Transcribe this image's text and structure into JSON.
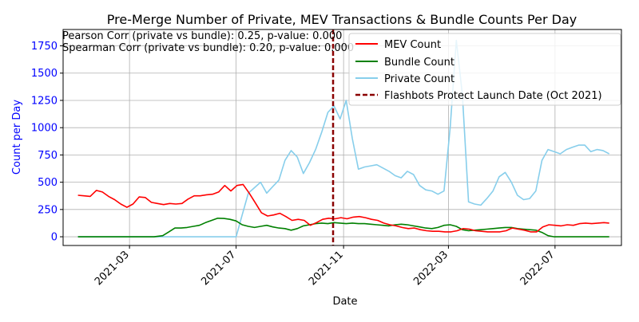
{
  "chart_data": {
    "type": "line",
    "title": "Pre-Merge Number of Private, MEV Transactions & Bundle Counts Per Day",
    "xlabel": "Date",
    "ylabel": "Count per Day",
    "xlim": [
      "2020-12-15",
      "2022-09-15"
    ],
    "ylim": [
      -80,
      1900
    ],
    "yticks": [
      0,
      250,
      500,
      750,
      1000,
      1250,
      1500,
      1750
    ],
    "xticks": [
      {
        "date": "2021-03-01",
        "label": "2021-03"
      },
      {
        "date": "2021-07-01",
        "label": "2021-07"
      },
      {
        "date": "2021-11-01",
        "label": "2021-11"
      },
      {
        "date": "2022-03-01",
        "label": "2022-03"
      },
      {
        "date": "2022-07-01",
        "label": "2022-07"
      }
    ],
    "grid": true,
    "legend_position": "top-right",
    "annotations": [
      "Pearson Corr (private vs bundle): 0.25, p-value: 0.000",
      "Spearman Corr (private vs bundle): 0.20, p-value: 0.000"
    ],
    "vline": {
      "date": "2021-10-20",
      "name": "Flashbots Protect Launch Date (Oct 2021)",
      "color": "#8b0000"
    },
    "series": [
      {
        "name": "MEV Count",
        "color": "#ff0000",
        "points": [
          [
            "2021-01-01",
            380
          ],
          [
            "2021-01-08",
            375
          ],
          [
            "2021-01-15",
            370
          ],
          [
            "2021-01-22",
            425
          ],
          [
            "2021-01-29",
            410
          ],
          [
            "2021-02-05",
            370
          ],
          [
            "2021-02-12",
            340
          ],
          [
            "2021-02-19",
            300
          ],
          [
            "2021-02-26",
            270
          ],
          [
            "2021-03-05",
            300
          ],
          [
            "2021-03-12",
            365
          ],
          [
            "2021-03-19",
            360
          ],
          [
            "2021-03-26",
            315
          ],
          [
            "2021-04-02",
            305
          ],
          [
            "2021-04-09",
            295
          ],
          [
            "2021-04-16",
            305
          ],
          [
            "2021-04-23",
            300
          ],
          [
            "2021-04-30",
            305
          ],
          [
            "2021-05-07",
            345
          ],
          [
            "2021-05-14",
            375
          ],
          [
            "2021-05-21",
            375
          ],
          [
            "2021-05-28",
            385
          ],
          [
            "2021-06-04",
            390
          ],
          [
            "2021-06-11",
            410
          ],
          [
            "2021-06-18",
            470
          ],
          [
            "2021-06-25",
            420
          ],
          [
            "2021-07-02",
            470
          ],
          [
            "2021-07-09",
            480
          ],
          [
            "2021-07-16",
            400
          ],
          [
            "2021-07-23",
            310
          ],
          [
            "2021-07-30",
            220
          ],
          [
            "2021-08-06",
            190
          ],
          [
            "2021-08-13",
            200
          ],
          [
            "2021-08-20",
            215
          ],
          [
            "2021-08-27",
            185
          ],
          [
            "2021-09-03",
            150
          ],
          [
            "2021-09-10",
            160
          ],
          [
            "2021-09-17",
            150
          ],
          [
            "2021-09-24",
            105
          ],
          [
            "2021-10-01",
            130
          ],
          [
            "2021-10-08",
            160
          ],
          [
            "2021-10-15",
            170
          ],
          [
            "2021-10-22",
            165
          ],
          [
            "2021-10-29",
            175
          ],
          [
            "2021-11-05",
            165
          ],
          [
            "2021-11-12",
            180
          ],
          [
            "2021-11-19",
            185
          ],
          [
            "2021-11-26",
            175
          ],
          [
            "2021-12-03",
            160
          ],
          [
            "2021-12-10",
            150
          ],
          [
            "2021-12-17",
            125
          ],
          [
            "2021-12-24",
            110
          ],
          [
            "2021-12-31",
            100
          ],
          [
            "2022-01-07",
            85
          ],
          [
            "2022-01-14",
            75
          ],
          [
            "2022-01-21",
            80
          ],
          [
            "2022-01-28",
            65
          ],
          [
            "2022-02-04",
            55
          ],
          [
            "2022-02-11",
            50
          ],
          [
            "2022-02-18",
            50
          ],
          [
            "2022-02-25",
            45
          ],
          [
            "2022-03-04",
            45
          ],
          [
            "2022-03-11",
            55
          ],
          [
            "2022-03-18",
            75
          ],
          [
            "2022-03-25",
            70
          ],
          [
            "2022-04-01",
            55
          ],
          [
            "2022-04-08",
            50
          ],
          [
            "2022-04-15",
            45
          ],
          [
            "2022-04-22",
            45
          ],
          [
            "2022-04-29",
            45
          ],
          [
            "2022-05-06",
            55
          ],
          [
            "2022-05-13",
            80
          ],
          [
            "2022-05-20",
            70
          ],
          [
            "2022-05-27",
            60
          ],
          [
            "2022-06-03",
            45
          ],
          [
            "2022-06-10",
            45
          ],
          [
            "2022-06-17",
            90
          ],
          [
            "2022-06-24",
            110
          ],
          [
            "2022-07-01",
            105
          ],
          [
            "2022-07-08",
            100
          ],
          [
            "2022-07-15",
            110
          ],
          [
            "2022-07-22",
            105
          ],
          [
            "2022-07-29",
            120
          ],
          [
            "2022-08-05",
            125
          ],
          [
            "2022-08-12",
            120
          ],
          [
            "2022-08-19",
            125
          ],
          [
            "2022-08-26",
            130
          ],
          [
            "2022-09-01",
            125
          ]
        ]
      },
      {
        "name": "Bundle Count",
        "color": "#008000",
        "points": [
          [
            "2021-01-01",
            0
          ],
          [
            "2021-02-01",
            0
          ],
          [
            "2021-03-01",
            0
          ],
          [
            "2021-03-29",
            0
          ],
          [
            "2021-04-08",
            10
          ],
          [
            "2021-04-15",
            45
          ],
          [
            "2021-04-22",
            80
          ],
          [
            "2021-04-29",
            80
          ],
          [
            "2021-05-06",
            85
          ],
          [
            "2021-05-13",
            95
          ],
          [
            "2021-05-20",
            105
          ],
          [
            "2021-05-27",
            130
          ],
          [
            "2021-06-03",
            150
          ],
          [
            "2021-06-10",
            170
          ],
          [
            "2021-06-17",
            168
          ],
          [
            "2021-06-24",
            160
          ],
          [
            "2021-07-01",
            145
          ],
          [
            "2021-07-08",
            110
          ],
          [
            "2021-07-15",
            95
          ],
          [
            "2021-07-22",
            85
          ],
          [
            "2021-07-29",
            95
          ],
          [
            "2021-08-05",
            105
          ],
          [
            "2021-08-12",
            90
          ],
          [
            "2021-08-19",
            80
          ],
          [
            "2021-08-26",
            75
          ],
          [
            "2021-09-02",
            60
          ],
          [
            "2021-09-09",
            75
          ],
          [
            "2021-09-16",
            100
          ],
          [
            "2021-09-23",
            110
          ],
          [
            "2021-09-30",
            120
          ],
          [
            "2021-10-07",
            125
          ],
          [
            "2021-10-14",
            120
          ],
          [
            "2021-10-21",
            130
          ],
          [
            "2021-10-28",
            125
          ],
          [
            "2021-11-04",
            120
          ],
          [
            "2021-11-11",
            125
          ],
          [
            "2021-11-18",
            120
          ],
          [
            "2021-11-25",
            120
          ],
          [
            "2021-12-02",
            115
          ],
          [
            "2021-12-09",
            110
          ],
          [
            "2021-12-16",
            105
          ],
          [
            "2021-12-23",
            100
          ],
          [
            "2021-12-30",
            110
          ],
          [
            "2022-01-06",
            115
          ],
          [
            "2022-01-13",
            110
          ],
          [
            "2022-01-20",
            100
          ],
          [
            "2022-01-27",
            90
          ],
          [
            "2022-02-03",
            80
          ],
          [
            "2022-02-10",
            75
          ],
          [
            "2022-02-17",
            85
          ],
          [
            "2022-02-24",
            105
          ],
          [
            "2022-03-03",
            110
          ],
          [
            "2022-03-10",
            95
          ],
          [
            "2022-03-17",
            65
          ],
          [
            "2022-03-24",
            55
          ],
          [
            "2022-03-31",
            60
          ],
          [
            "2022-04-07",
            65
          ],
          [
            "2022-04-14",
            70
          ],
          [
            "2022-04-21",
            75
          ],
          [
            "2022-04-28",
            80
          ],
          [
            "2022-05-05",
            85
          ],
          [
            "2022-05-12",
            85
          ],
          [
            "2022-05-19",
            75
          ],
          [
            "2022-05-26",
            70
          ],
          [
            "2022-06-02",
            65
          ],
          [
            "2022-06-09",
            60
          ],
          [
            "2022-06-16",
            40
          ],
          [
            "2022-06-23",
            10
          ],
          [
            "2022-06-30",
            0
          ],
          [
            "2022-07-15",
            0
          ],
          [
            "2022-08-01",
            0
          ],
          [
            "2022-09-01",
            0
          ]
        ]
      },
      {
        "name": "Private Count",
        "color": "#87ceeb",
        "points": [
          [
            "2021-01-01",
            0
          ],
          [
            "2021-02-01",
            0
          ],
          [
            "2021-03-01",
            0
          ],
          [
            "2021-04-01",
            0
          ],
          [
            "2021-05-01",
            0
          ],
          [
            "2021-06-01",
            0
          ],
          [
            "2021-06-25",
            0
          ],
          [
            "2021-07-01",
            0
          ],
          [
            "2021-07-08",
            200
          ],
          [
            "2021-07-15",
            400
          ],
          [
            "2021-07-22",
            450
          ],
          [
            "2021-07-29",
            500
          ],
          [
            "2021-08-05",
            400
          ],
          [
            "2021-08-12",
            460
          ],
          [
            "2021-08-19",
            520
          ],
          [
            "2021-08-26",
            700
          ],
          [
            "2021-09-02",
            790
          ],
          [
            "2021-09-09",
            730
          ],
          [
            "2021-09-16",
            580
          ],
          [
            "2021-09-23",
            680
          ],
          [
            "2021-09-30",
            800
          ],
          [
            "2021-10-07",
            960
          ],
          [
            "2021-10-14",
            1140
          ],
          [
            "2021-10-21",
            1200
          ],
          [
            "2021-10-28",
            1080
          ],
          [
            "2021-11-04",
            1250
          ],
          [
            "2021-11-11",
            900
          ],
          [
            "2021-11-18",
            620
          ],
          [
            "2021-11-25",
            640
          ],
          [
            "2021-12-02",
            650
          ],
          [
            "2021-12-09",
            660
          ],
          [
            "2021-12-16",
            630
          ],
          [
            "2021-12-23",
            600
          ],
          [
            "2021-12-30",
            560
          ],
          [
            "2022-01-06",
            540
          ],
          [
            "2022-01-13",
            600
          ],
          [
            "2022-01-20",
            570
          ],
          [
            "2022-01-27",
            470
          ],
          [
            "2022-02-03",
            430
          ],
          [
            "2022-02-10",
            420
          ],
          [
            "2022-02-17",
            390
          ],
          [
            "2022-02-24",
            420
          ],
          [
            "2022-03-03",
            1000
          ],
          [
            "2022-03-10",
            1800
          ],
          [
            "2022-03-17",
            1300
          ],
          [
            "2022-03-24",
            320
          ],
          [
            "2022-03-31",
            300
          ],
          [
            "2022-04-07",
            290
          ],
          [
            "2022-04-14",
            350
          ],
          [
            "2022-04-21",
            420
          ],
          [
            "2022-04-28",
            550
          ],
          [
            "2022-05-05",
            590
          ],
          [
            "2022-05-12",
            500
          ],
          [
            "2022-05-19",
            380
          ],
          [
            "2022-05-26",
            340
          ],
          [
            "2022-06-02",
            350
          ],
          [
            "2022-06-09",
            420
          ],
          [
            "2022-06-16",
            700
          ],
          [
            "2022-06-23",
            800
          ],
          [
            "2022-06-30",
            780
          ],
          [
            "2022-07-07",
            760
          ],
          [
            "2022-07-14",
            800
          ],
          [
            "2022-07-21",
            820
          ],
          [
            "2022-07-28",
            840
          ],
          [
            "2022-08-04",
            840
          ],
          [
            "2022-08-11",
            780
          ],
          [
            "2022-08-18",
            800
          ],
          [
            "2022-08-25",
            790
          ],
          [
            "2022-09-01",
            760
          ]
        ]
      }
    ]
  }
}
